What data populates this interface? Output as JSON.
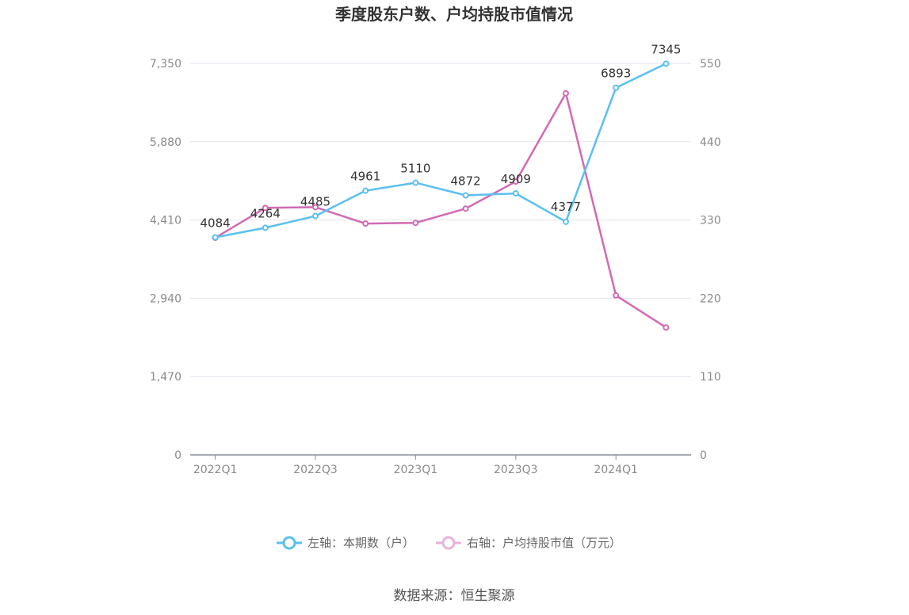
{
  "chart_data": {
    "type": "line",
    "title": "季度股东户数、户均持股市值情况",
    "categories": [
      "2022Q1",
      "2022Q2",
      "2022Q3",
      "2022Q4",
      "2023Q1",
      "2023Q2",
      "2023Q3",
      "2023Q4",
      "2024Q1",
      "2024Q2"
    ],
    "x_tick_labels": [
      "2022Q1",
      "2022Q3",
      "2023Q1",
      "2023Q3",
      "2024Q1"
    ],
    "left_axis": {
      "ylim": [
        0,
        7350
      ],
      "ticks": [
        "0",
        "1,470",
        "2,940",
        "4,410",
        "5,880",
        "7,350"
      ]
    },
    "right_axis": {
      "ylim": [
        0,
        550
      ],
      "ticks": [
        "0",
        "110",
        "220",
        "330",
        "440",
        "550"
      ]
    },
    "series": [
      {
        "name": "左轴：本期数（户）",
        "axis": "left",
        "color": "#5bc0f0",
        "values": [
          4084,
          4264,
          4485,
          4961,
          5110,
          4872,
          4909,
          4377,
          6893,
          7345
        ],
        "labels": [
          "4084",
          "4264",
          "4485",
          "4961",
          "5110",
          "4872",
          "4909",
          "4377",
          "6893",
          "7345"
        ]
      },
      {
        "name": "右轴：户均持股市值（万元）",
        "axis": "right",
        "color": "#d26ab4",
        "values": [
          305,
          347,
          348,
          325,
          326,
          346,
          384,
          508,
          224,
          179
        ]
      }
    ],
    "legend_position": "bottom",
    "grid": true
  },
  "source": "数据来源：恒生聚源"
}
